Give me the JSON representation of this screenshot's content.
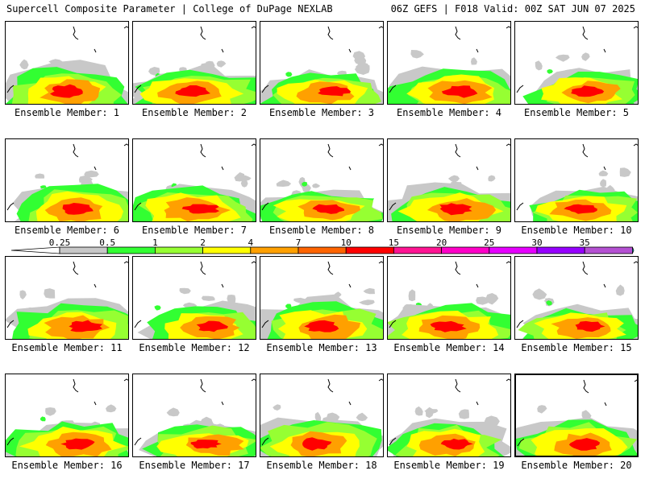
{
  "header": {
    "title_left": "Supercell Composite Parameter | College of DuPage NEXLAB",
    "title_right": "06Z GEFS | F018 Valid: 00Z SAT JUN 07 2025"
  },
  "legend": {
    "ticks": [
      "0.25",
      "0.5",
      "1",
      "2",
      "4",
      "7",
      "10",
      "15",
      "20",
      "25",
      "30",
      "35"
    ],
    "colors": [
      "#c8c8c8",
      "#32ff32",
      "#96ff32",
      "#ffff00",
      "#ffa000",
      "#ff6400",
      "#ff0000",
      "#ff1493",
      "#ff00c8",
      "#e600ff",
      "#9600ff",
      "#b450d2",
      "#00ffff"
    ]
  },
  "members": [
    {
      "label": "Ensemble Member: 1"
    },
    {
      "label": "Ensemble Member: 2"
    },
    {
      "label": "Ensemble Member: 3"
    },
    {
      "label": "Ensemble Member: 4"
    },
    {
      "label": "Ensemble Member: 5"
    },
    {
      "label": "Ensemble Member: 6"
    },
    {
      "label": "Ensemble Member: 7"
    },
    {
      "label": "Ensemble Member: 8"
    },
    {
      "label": "Ensemble Member: 9"
    },
    {
      "label": "Ensemble Member: 10"
    },
    {
      "label": "Ensemble Member: 11"
    },
    {
      "label": "Ensemble Member: 12"
    },
    {
      "label": "Ensemble Member: 13"
    },
    {
      "label": "Ensemble Member: 14"
    },
    {
      "label": "Ensemble Member: 15"
    },
    {
      "label": "Ensemble Member: 16"
    },
    {
      "label": "Ensemble Member: 17"
    },
    {
      "label": "Ensemble Member: 18"
    },
    {
      "label": "Ensemble Member: 19"
    },
    {
      "label": "Ensemble Member: 20",
      "selected": true
    }
  ]
}
